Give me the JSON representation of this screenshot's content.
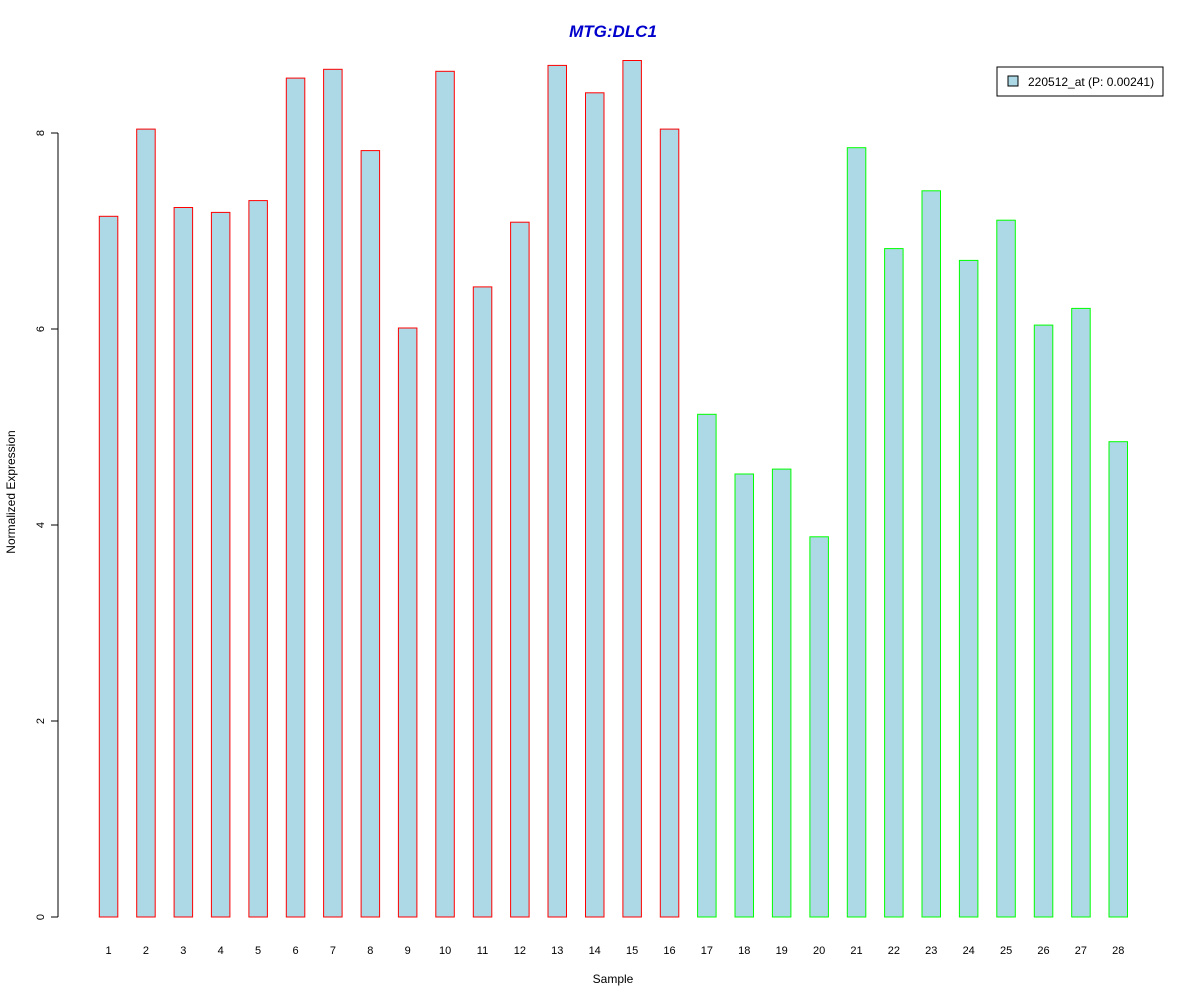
{
  "chart_data": {
    "type": "bar",
    "title": "MTG:DLC1",
    "xlabel": "Sample",
    "ylabel": "Normalized Expression",
    "categories": [
      "1",
      "2",
      "3",
      "4",
      "5",
      "6",
      "7",
      "8",
      "9",
      "10",
      "11",
      "12",
      "13",
      "14",
      "15",
      "16",
      "17",
      "18",
      "19",
      "20",
      "21",
      "22",
      "23",
      "24",
      "25",
      "26",
      "27",
      "28"
    ],
    "series": [
      {
        "name": "220512_at (P: 0.00241)",
        "values": [
          7.15,
          8.04,
          7.24,
          7.19,
          7.31,
          8.56,
          8.65,
          7.82,
          6.01,
          8.63,
          6.43,
          7.09,
          8.69,
          8.41,
          8.74,
          8.04,
          5.13,
          4.52,
          4.57,
          3.88,
          7.85,
          6.82,
          7.41,
          6.7,
          7.11,
          6.04,
          6.21,
          4.85
        ]
      }
    ],
    "group_of_sample": [
      1,
      1,
      1,
      1,
      1,
      1,
      1,
      1,
      1,
      1,
      1,
      1,
      1,
      1,
      1,
      1,
      2,
      2,
      2,
      2,
      2,
      2,
      2,
      2,
      2,
      2,
      2,
      2
    ],
    "yticks": [
      0,
      2,
      4,
      6,
      8
    ],
    "ylim": [
      0,
      8.9
    ],
    "grid": false,
    "legend_position": "top-right",
    "colors": {
      "bar_fill": "#add8e6",
      "group1_border": "#ff0000",
      "group2_border": "#00ff00",
      "title": "#0000cd",
      "axis": "#000000"
    }
  }
}
